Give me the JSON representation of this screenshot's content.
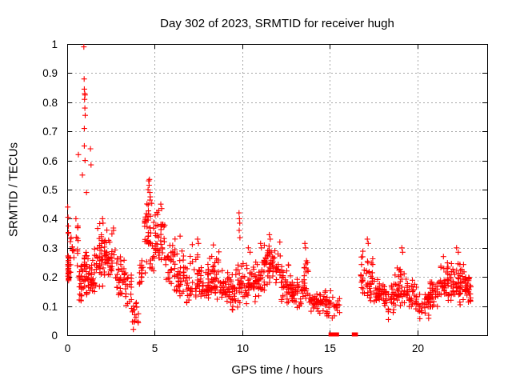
{
  "colors": {
    "marker": "#ff0000",
    "grid": "#a9a9a9",
    "axis": "#000000",
    "text": "#000000",
    "background": "#ffffff"
  },
  "chart_data": {
    "type": "scatter",
    "title": "Day 302 of 2023, SRMTID for receiver hugh",
    "xlabel": "GPS time / hours",
    "ylabel": "SRMTID / TECUs",
    "xlim": [
      0,
      24
    ],
    "ylim": [
      0,
      1
    ],
    "xticks": [
      0,
      5,
      10,
      15,
      20
    ],
    "yticks": [
      0,
      0.1,
      0.2,
      0.3,
      0.4,
      0.5,
      0.6,
      0.7,
      0.8,
      0.9,
      1
    ],
    "grid": true,
    "legend": false,
    "marker": {
      "shape": "plus",
      "color": "#ff0000",
      "size": 7
    },
    "seed": 42,
    "density_bins": [
      [
        0.0,
        0.15,
        0.14,
        0.45,
        0.24,
        28
      ],
      [
        0.15,
        0.45,
        0.18,
        0.38,
        0.28,
        14
      ],
      [
        0.45,
        0.65,
        0.22,
        0.4,
        0.3,
        10
      ],
      [
        0.65,
        0.95,
        0.11,
        0.26,
        0.17,
        26
      ],
      [
        0.95,
        1.15,
        0.13,
        0.35,
        0.21,
        24
      ],
      [
        1.15,
        1.6,
        0.13,
        0.3,
        0.19,
        40
      ],
      [
        1.6,
        2.2,
        0.15,
        0.4,
        0.27,
        48
      ],
      [
        2.2,
        2.7,
        0.17,
        0.38,
        0.26,
        32
      ],
      [
        2.7,
        3.3,
        0.12,
        0.3,
        0.2,
        36
      ],
      [
        3.3,
        3.7,
        0.08,
        0.22,
        0.15,
        20
      ],
      [
        3.7,
        4.1,
        0.02,
        0.15,
        0.08,
        13
      ],
      [
        4.1,
        4.4,
        0.14,
        0.3,
        0.21,
        15
      ],
      [
        4.4,
        5.0,
        0.2,
        0.47,
        0.33,
        50
      ],
      [
        5.0,
        5.6,
        0.24,
        0.45,
        0.33,
        40
      ],
      [
        5.6,
        6.2,
        0.15,
        0.35,
        0.24,
        36
      ],
      [
        6.2,
        6.8,
        0.12,
        0.3,
        0.2,
        36
      ],
      [
        6.8,
        7.6,
        0.1,
        0.32,
        0.18,
        46
      ],
      [
        7.6,
        8.2,
        0.1,
        0.28,
        0.17,
        40
      ],
      [
        8.2,
        8.8,
        0.1,
        0.3,
        0.19,
        40
      ],
      [
        8.8,
        9.4,
        0.09,
        0.24,
        0.16,
        40
      ],
      [
        9.4,
        9.9,
        0.08,
        0.25,
        0.14,
        34
      ],
      [
        9.9,
        10.6,
        0.09,
        0.26,
        0.16,
        42
      ],
      [
        10.6,
        11.2,
        0.1,
        0.28,
        0.18,
        40
      ],
      [
        11.2,
        12.2,
        0.14,
        0.33,
        0.24,
        62
      ],
      [
        12.2,
        12.8,
        0.1,
        0.25,
        0.17,
        40
      ],
      [
        12.8,
        13.4,
        0.08,
        0.2,
        0.14,
        36
      ],
      [
        13.4,
        13.8,
        0.1,
        0.28,
        0.17,
        26
      ],
      [
        13.8,
        14.5,
        0.07,
        0.18,
        0.12,
        36
      ],
      [
        14.5,
        15.1,
        0.05,
        0.16,
        0.11,
        30
      ],
      [
        15.1,
        15.6,
        0.05,
        0.15,
        0.1,
        16
      ],
      [
        16.75,
        17.5,
        0.1,
        0.3,
        0.19,
        46
      ],
      [
        17.5,
        18.1,
        0.08,
        0.2,
        0.14,
        36
      ],
      [
        18.1,
        18.7,
        0.05,
        0.18,
        0.12,
        34
      ],
      [
        18.7,
        19.4,
        0.09,
        0.28,
        0.16,
        40
      ],
      [
        19.4,
        20.0,
        0.08,
        0.2,
        0.13,
        36
      ],
      [
        20.0,
        20.7,
        0.04,
        0.15,
        0.1,
        34
      ],
      [
        20.7,
        21.3,
        0.08,
        0.2,
        0.14,
        36
      ],
      [
        21.3,
        22.0,
        0.1,
        0.26,
        0.17,
        46
      ],
      [
        22.0,
        22.7,
        0.1,
        0.27,
        0.18,
        50
      ],
      [
        22.7,
        23.1,
        0.1,
        0.22,
        0.16,
        34
      ]
    ],
    "extra_points": [
      [
        0.03,
        0.44
      ],
      [
        0.05,
        0.405
      ],
      [
        0.07,
        0.375
      ],
      [
        0.5,
        0.4
      ],
      [
        0.64,
        0.62
      ],
      [
        0.87,
        0.55
      ],
      [
        0.95,
        0.99
      ],
      [
        0.97,
        0.88
      ],
      [
        0.98,
        0.845
      ],
      [
        1.0,
        0.83
      ],
      [
        1.02,
        0.825
      ],
      [
        0.99,
        0.81
      ],
      [
        1.01,
        0.78
      ],
      [
        1.03,
        0.755
      ],
      [
        0.98,
        0.71
      ],
      [
        0.98,
        0.65
      ],
      [
        1.02,
        0.6
      ],
      [
        1.1,
        0.49
      ],
      [
        1.33,
        0.64
      ],
      [
        1.36,
        0.585
      ],
      [
        2.02,
        0.4
      ],
      [
        2.05,
        0.385
      ],
      [
        3.78,
        0.02
      ],
      [
        3.82,
        0.045
      ],
      [
        3.86,
        0.07
      ],
      [
        3.8,
        0.1
      ],
      [
        4.62,
        0.5
      ],
      [
        4.66,
        0.53
      ],
      [
        4.7,
        0.535
      ],
      [
        4.68,
        0.515
      ],
      [
        4.72,
        0.49
      ],
      [
        4.75,
        0.475
      ],
      [
        5.35,
        0.45
      ],
      [
        5.4,
        0.435
      ],
      [
        6.45,
        0.34
      ],
      [
        7.45,
        0.33
      ],
      [
        7.5,
        0.315
      ],
      [
        8.35,
        0.31
      ],
      [
        9.82,
        0.42
      ],
      [
        9.84,
        0.4
      ],
      [
        9.86,
        0.385
      ],
      [
        9.83,
        0.36
      ],
      [
        9.87,
        0.335
      ],
      [
        10.35,
        0.3
      ],
      [
        10.45,
        0.285
      ],
      [
        11.05,
        0.315
      ],
      [
        11.1,
        0.3
      ],
      [
        11.55,
        0.345
      ],
      [
        11.6,
        0.33
      ],
      [
        13.58,
        0.315
      ],
      [
        13.62,
        0.3
      ],
      [
        17.15,
        0.33
      ],
      [
        17.2,
        0.315
      ],
      [
        19.12,
        0.3
      ],
      [
        19.17,
        0.285
      ],
      [
        21.5,
        0.27
      ],
      [
        22.25,
        0.3
      ],
      [
        22.35,
        0.285
      ]
    ],
    "zero_points": [
      [
        15.05,
        0
      ],
      [
        15.1,
        0
      ],
      [
        15.22,
        0
      ],
      [
        15.27,
        0
      ],
      [
        15.42,
        0
      ],
      [
        16.38,
        0
      ],
      [
        16.43,
        0
      ],
      [
        16.5,
        0
      ]
    ]
  }
}
